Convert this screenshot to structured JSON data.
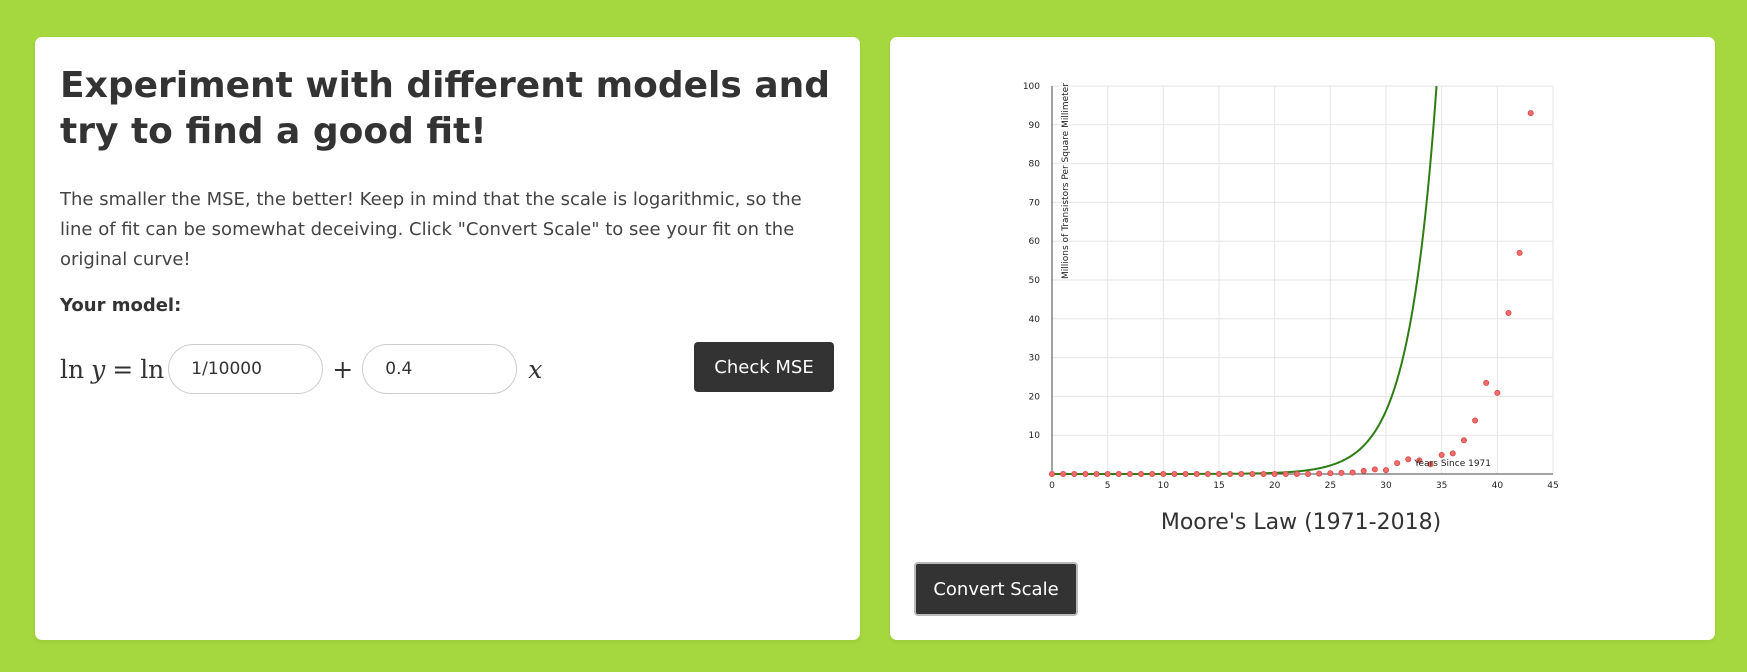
{
  "left_panel": {
    "heading": "Experiment with different models and try to find a good fit!",
    "description": "The smaller the MSE, the better! Keep in mind that the scale is logarithmic, so the line of fit can be somewhat deceiving. Click \"Convert Scale\" to see your fit on the original curve!",
    "model_label": "Your model:",
    "equation": {
      "ln": "ln",
      "y": "y",
      "equals": "=",
      "ln2": "ln",
      "plus": "+",
      "x": "x",
      "coefficient_value": "1/10000",
      "rate_value": "0.4"
    },
    "check_button": "Check MSE"
  },
  "right_panel": {
    "convert_button": "Convert Scale"
  },
  "chart_data": {
    "type": "scatter",
    "title": "Moore's Law (1971-2018)",
    "xlabel": "Years Since 1971",
    "ylabel": "Millions of Transistors Per Square Millimeter",
    "xlim": [
      0,
      45
    ],
    "ylim": [
      0,
      100
    ],
    "x_ticks": [
      0,
      5,
      10,
      15,
      20,
      25,
      30,
      35,
      40,
      45
    ],
    "y_ticks": [
      10,
      20,
      30,
      40,
      50,
      60,
      70,
      80,
      90,
      100
    ],
    "grid": true,
    "series": [
      {
        "points": [
          [
            0,
            0
          ],
          [
            1,
            0
          ],
          [
            2,
            0
          ],
          [
            3,
            0
          ],
          [
            4,
            0
          ],
          [
            5,
            0
          ],
          [
            6,
            0
          ],
          [
            7,
            0
          ],
          [
            8,
            0
          ],
          [
            9,
            0
          ],
          [
            10,
            0
          ],
          [
            11,
            0
          ],
          [
            12,
            0
          ],
          [
            13,
            0
          ],
          [
            14,
            0
          ],
          [
            15,
            0
          ],
          [
            16,
            0
          ],
          [
            17,
            0
          ],
          [
            18,
            0
          ],
          [
            19,
            0
          ],
          [
            20,
            0
          ],
          [
            21,
            0
          ],
          [
            22,
            0
          ],
          [
            23,
            0
          ],
          [
            24,
            0.1
          ],
          [
            25,
            0.2
          ],
          [
            26,
            0.3
          ],
          [
            27,
            0.4
          ],
          [
            28,
            0.8
          ],
          [
            29,
            1.2
          ],
          [
            30,
            1.0
          ],
          [
            31,
            2.8
          ],
          [
            32,
            3.8
          ],
          [
            33,
            3.5
          ],
          [
            34,
            2.5
          ],
          [
            35,
            4.9
          ],
          [
            36,
            5.3
          ],
          [
            37,
            8.7
          ],
          [
            38,
            13.8
          ],
          [
            39,
            23.5
          ],
          [
            40,
            20.9
          ],
          [
            41,
            41.5
          ],
          [
            42,
            57
          ],
          [
            43,
            93
          ]
        ],
        "color": "#f06b6b"
      },
      {
        "type": "line",
        "equation": "y = (1/10000) * e^(0.4x)",
        "color": "#2e7d12"
      }
    ]
  }
}
